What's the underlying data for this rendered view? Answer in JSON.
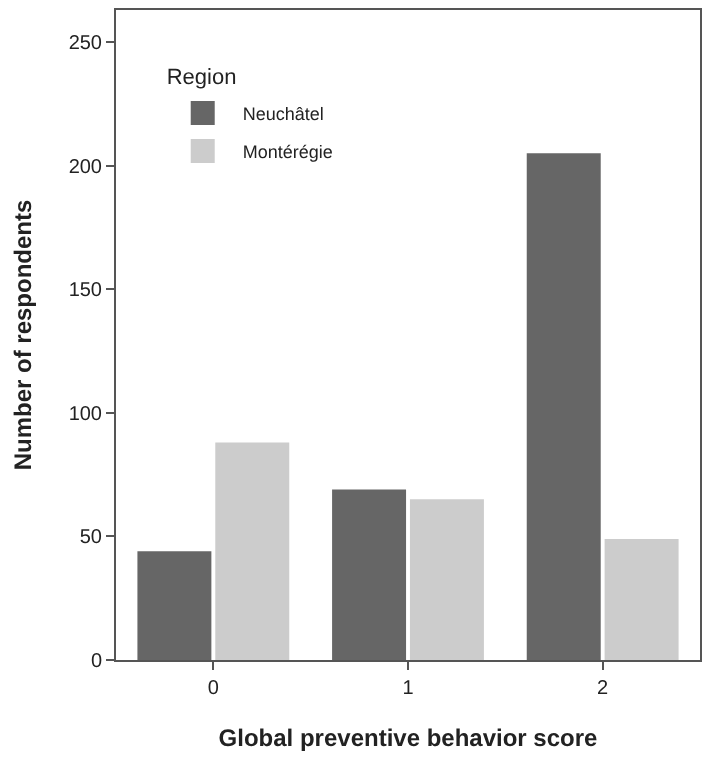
{
  "chart_data": {
    "type": "bar",
    "xlabel": "Global preventive behavior score",
    "ylabel": "Number of respondents",
    "legend_title": "Region",
    "legend": "top left",
    "categories": [
      "0",
      "1",
      "2"
    ],
    "series": [
      {
        "name": "Neuchâtel",
        "color": "#666666",
        "values": [
          44,
          69,
          205
        ]
      },
      {
        "name": "Montérégie",
        "color": "#cccccc",
        "values": [
          88,
          65,
          49
        ]
      }
    ],
    "ylim": [
      0,
      263
    ],
    "yticks": [
      0,
      50,
      100,
      150,
      200,
      250
    ]
  }
}
